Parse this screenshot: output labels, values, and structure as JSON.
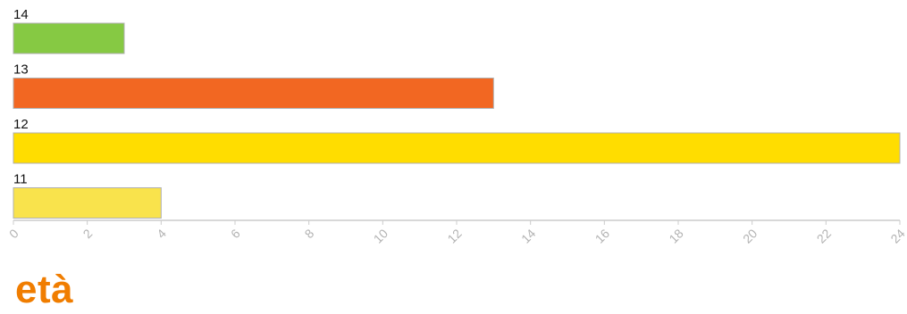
{
  "chart_data": {
    "type": "bar",
    "orientation": "horizontal",
    "title": "età",
    "categories": [
      "14",
      "13",
      "12",
      "11"
    ],
    "values": [
      3,
      13,
      24,
      4
    ],
    "colors": [
      "#86c943",
      "#f26722",
      "#ffdd00",
      "#f9e34c"
    ],
    "xlim": [
      0,
      24
    ],
    "x_ticks": [
      "0",
      "2",
      "4",
      "6",
      "8",
      "10",
      "12",
      "14",
      "16",
      "18",
      "20",
      "22",
      "24"
    ],
    "grid": false,
    "legend": "none"
  }
}
